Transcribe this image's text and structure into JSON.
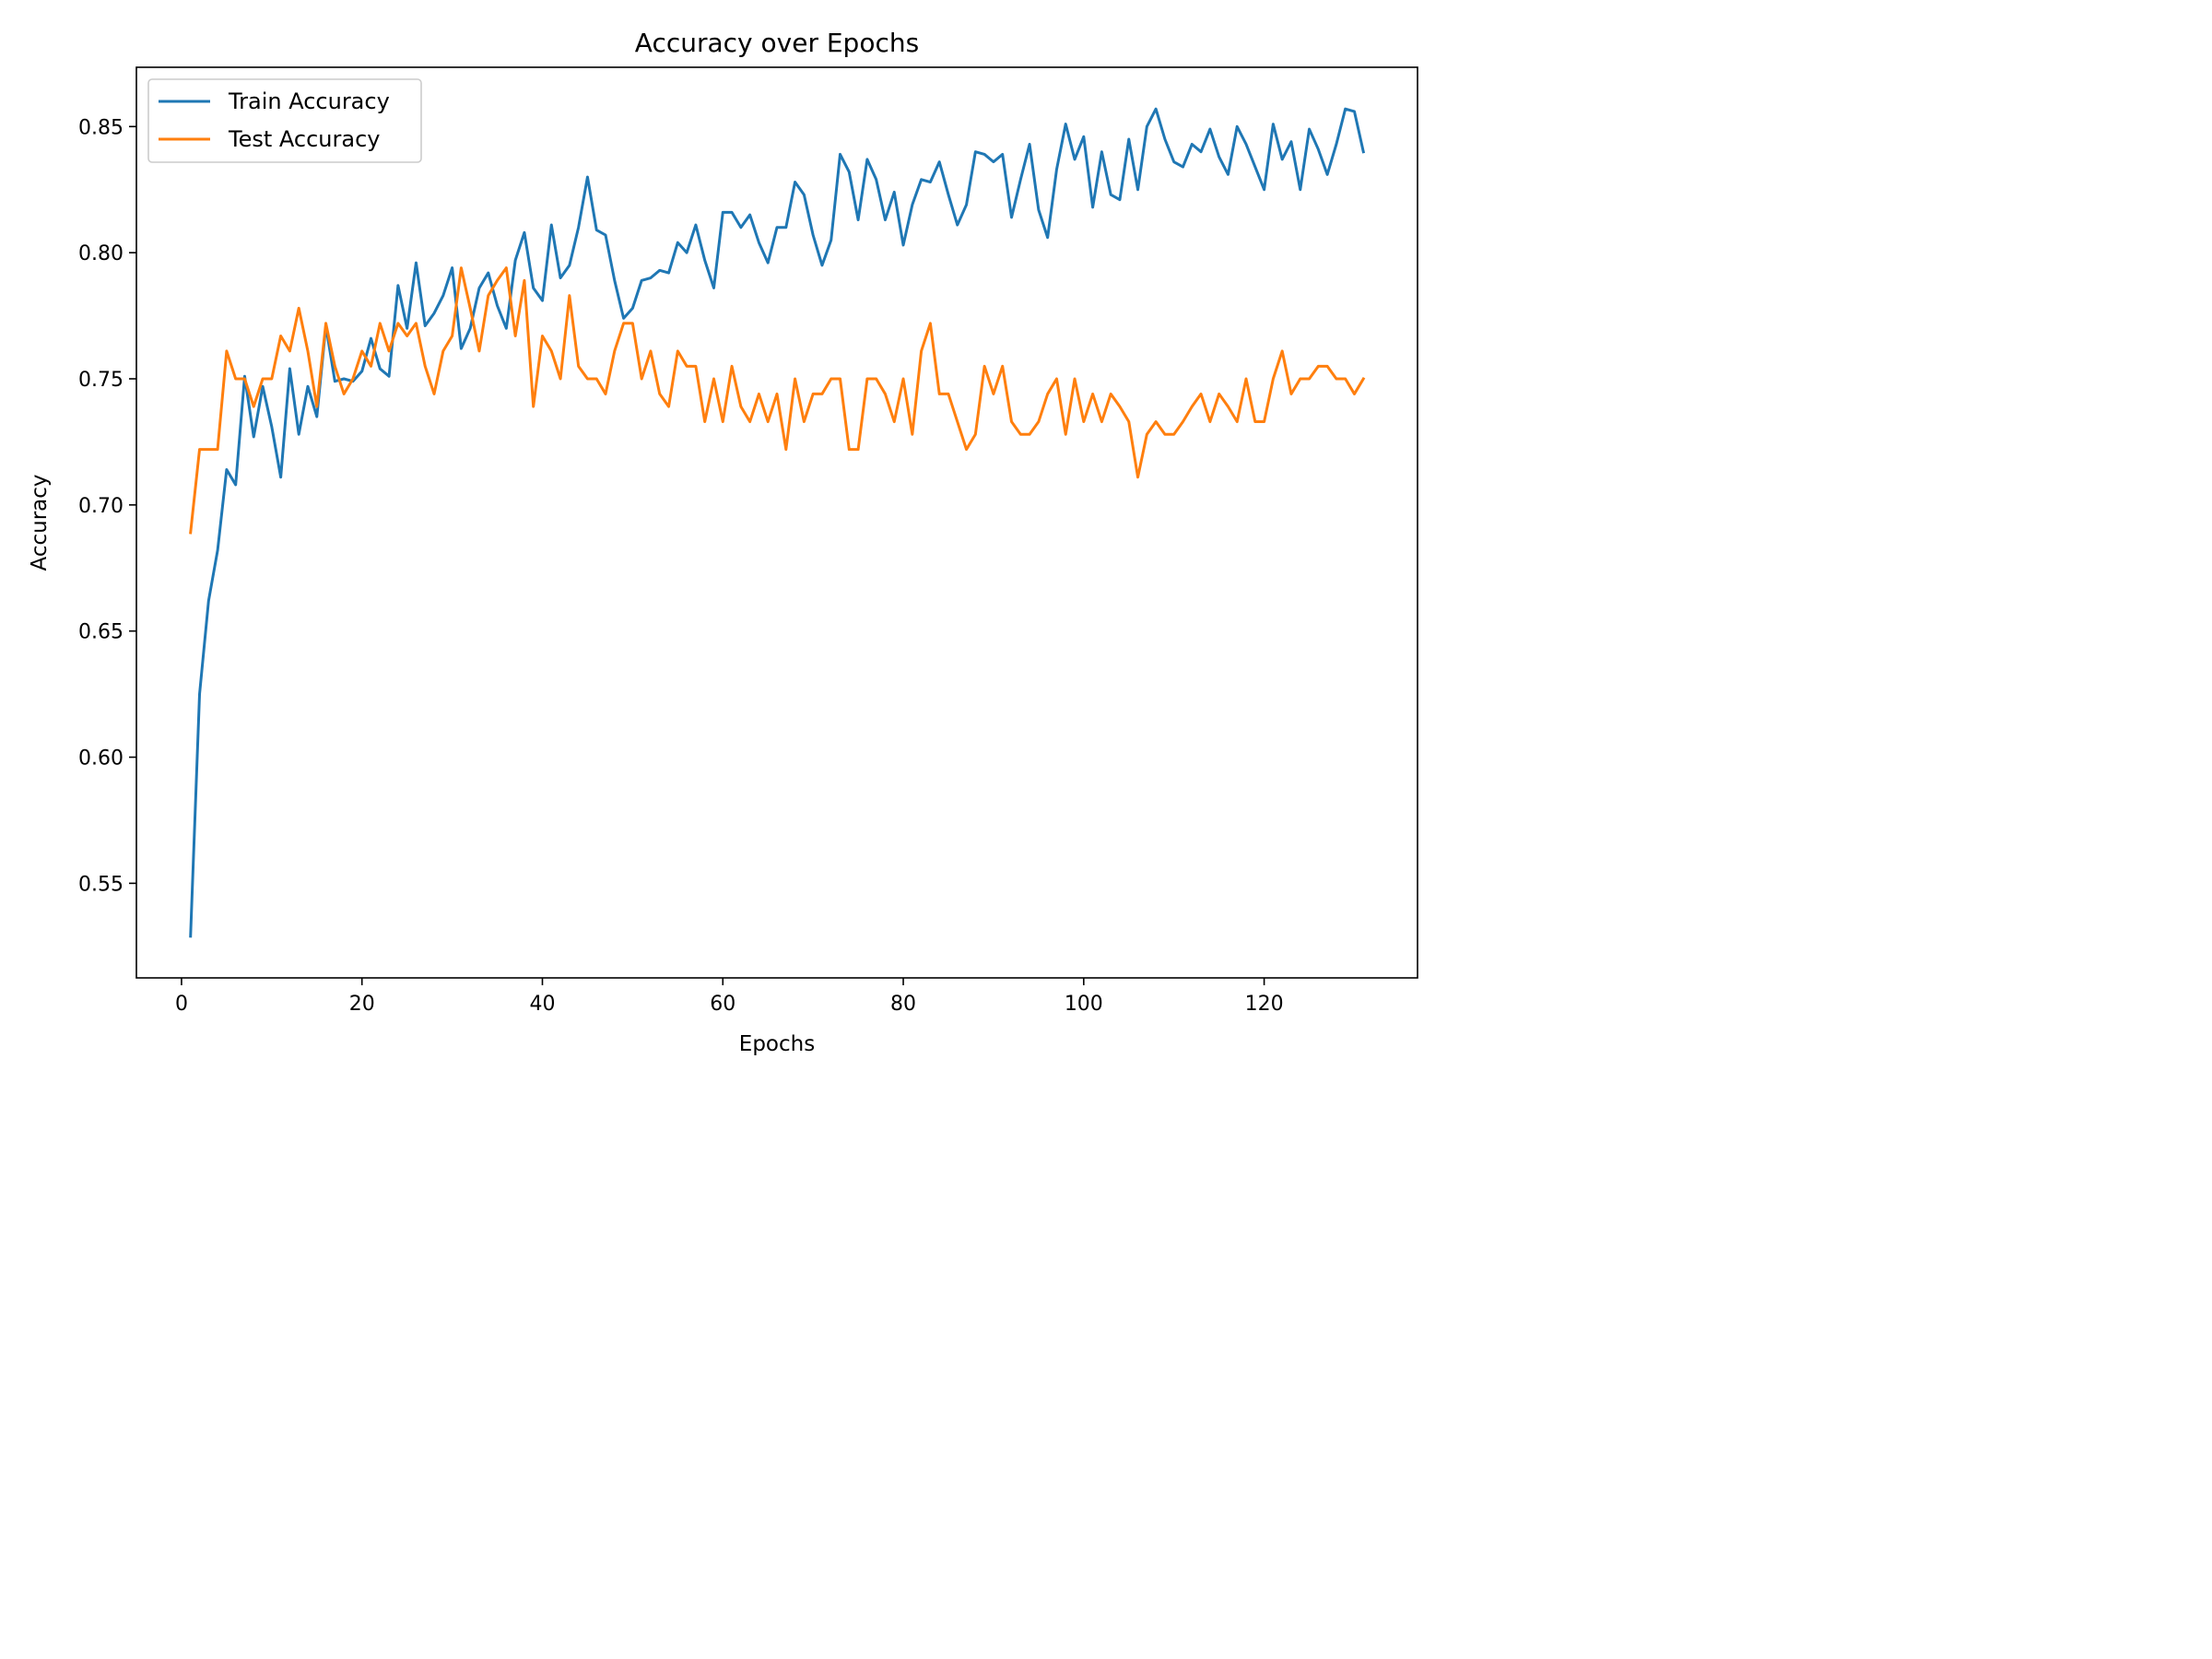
{
  "chart_data": {
    "type": "line",
    "title": "Accuracy over Epochs",
    "xlabel": "Epochs",
    "ylabel": "Accuracy",
    "xlim": [
      -5,
      137
    ],
    "ylim": [
      0.5125,
      0.8735
    ],
    "x_ticks": [
      0,
      20,
      40,
      60,
      80,
      100,
      120
    ],
    "y_ticks": [
      0.55,
      0.6,
      0.65,
      0.7,
      0.75,
      0.8,
      0.85
    ],
    "grid": false,
    "legend": "top-left",
    "series": [
      {
        "name": "Train Accuracy",
        "color": "#1f77b4",
        "values": [
          0.529,
          0.625,
          0.662,
          0.682,
          0.714,
          0.708,
          0.751,
          0.727,
          0.747,
          0.731,
          0.711,
          0.754,
          0.728,
          0.747,
          0.735,
          0.771,
          0.749,
          0.75,
          0.749,
          0.753,
          0.766,
          0.754,
          0.751,
          0.787,
          0.77,
          0.796,
          0.771,
          0.776,
          0.783,
          0.794,
          0.762,
          0.77,
          0.786,
          0.792,
          0.779,
          0.77,
          0.797,
          0.808,
          0.786,
          0.781,
          0.811,
          0.79,
          0.795,
          0.81,
          0.83,
          0.809,
          0.807,
          0.789,
          0.774,
          0.778,
          0.789,
          0.79,
          0.793,
          0.792,
          0.804,
          0.8,
          0.811,
          0.797,
          0.786,
          0.816,
          0.816,
          0.81,
          0.815,
          0.804,
          0.796,
          0.81,
          0.81,
          0.828,
          0.823,
          0.807,
          0.795,
          0.805,
          0.839,
          0.832,
          0.813,
          0.837,
          0.829,
          0.813,
          0.824,
          0.803,
          0.819,
          0.829,
          0.828,
          0.836,
          0.823,
          0.811,
          0.819,
          0.84,
          0.839,
          0.836,
          0.839,
          0.814,
          0.829,
          0.843,
          0.817,
          0.806,
          0.833,
          0.851,
          0.837,
          0.846,
          0.818,
          0.84,
          0.823,
          0.821,
          0.845,
          0.825,
          0.85,
          0.857,
          0.845,
          0.836,
          0.834,
          0.843,
          0.84,
          0.849,
          0.838,
          0.831,
          0.85,
          0.843,
          0.834,
          0.825,
          0.851,
          0.837,
          0.844,
          0.825,
          0.849,
          0.841,
          0.831,
          0.843,
          0.857,
          0.856,
          0.84
        ]
      },
      {
        "name": "Test Accuracy",
        "color": "#ff7f0e",
        "values": [
          0.689,
          0.722,
          0.722,
          0.722,
          0.761,
          0.75,
          0.75,
          0.739,
          0.75,
          0.75,
          0.767,
          0.761,
          0.778,
          0.761,
          0.739,
          0.772,
          0.755,
          0.744,
          0.75,
          0.761,
          0.755,
          0.772,
          0.761,
          0.772,
          0.767,
          0.772,
          0.755,
          0.744,
          0.761,
          0.767,
          0.794,
          0.778,
          0.761,
          0.783,
          0.789,
          0.794,
          0.767,
          0.789,
          0.739,
          0.767,
          0.761,
          0.75,
          0.783,
          0.755,
          0.75,
          0.75,
          0.744,
          0.761,
          0.772,
          0.772,
          0.75,
          0.761,
          0.744,
          0.739,
          0.761,
          0.755,
          0.755,
          0.733,
          0.75,
          0.733,
          0.755,
          0.739,
          0.733,
          0.744,
          0.733,
          0.744,
          0.722,
          0.75,
          0.733,
          0.744,
          0.744,
          0.75,
          0.75,
          0.722,
          0.722,
          0.75,
          0.75,
          0.744,
          0.733,
          0.75,
          0.728,
          0.761,
          0.772,
          0.744,
          0.744,
          0.733,
          0.722,
          0.728,
          0.755,
          0.744,
          0.755,
          0.733,
          0.728,
          0.728,
          0.733,
          0.744,
          0.75,
          0.728,
          0.75,
          0.733,
          0.744,
          0.733,
          0.744,
          0.739,
          0.733,
          0.711,
          0.728,
          0.733,
          0.728,
          0.728,
          0.733,
          0.739,
          0.744,
          0.733,
          0.744,
          0.739,
          0.733,
          0.75,
          0.733,
          0.733,
          0.75,
          0.761,
          0.744,
          0.75,
          0.75,
          0.755,
          0.755,
          0.75,
          0.75,
          0.744,
          0.75
        ]
      }
    ]
  }
}
